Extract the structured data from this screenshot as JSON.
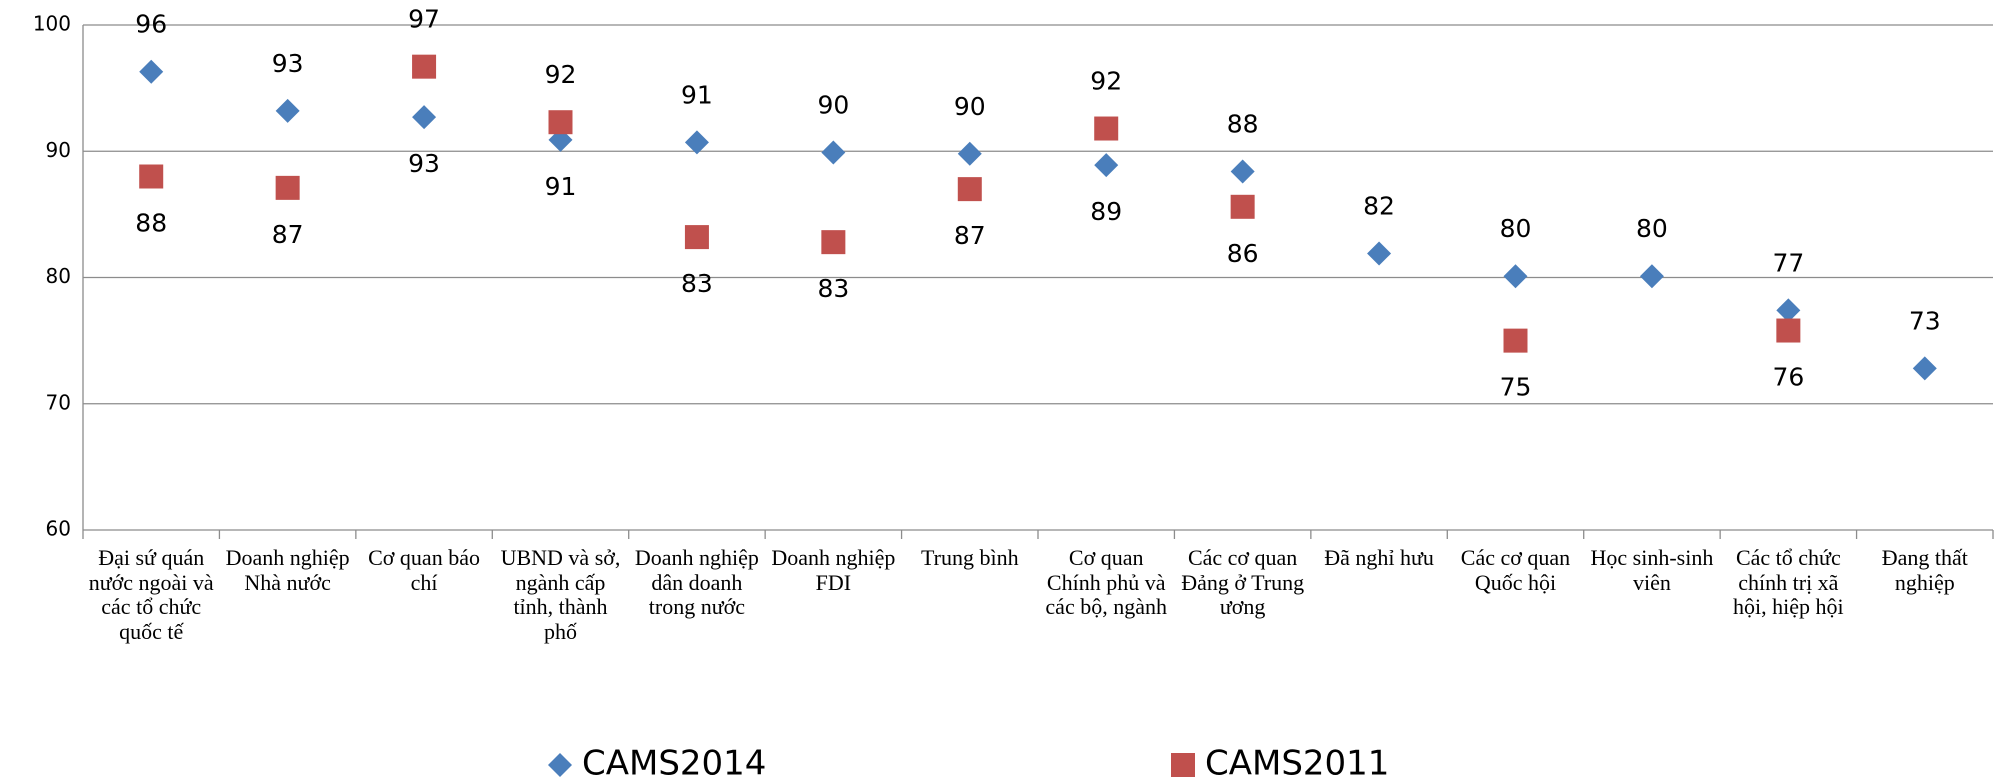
{
  "chart_data": {
    "type": "scatter",
    "categories": [
      "Đại sứ quán nước ngoài và các tổ chức quốc tế",
      "Doanh nghiệp Nhà nước",
      "Cơ quan báo chí",
      "UBND và sở, ngành cấp tỉnh, thành phố",
      "Doanh nghiệp dân doanh trong nước",
      "Doanh nghiệp FDI",
      "Trung bình",
      "Cơ quan Chính phủ và các bộ, ngành",
      "Các cơ quan Đảng ở Trung ương",
      "Đã nghỉ hưu",
      "Các cơ quan Quốc hội",
      "Học sinh-sinh viên",
      "Các tổ chức chính trị xã hội, hiệp hội",
      "Đang thất nghiệp"
    ],
    "series": [
      {
        "name": "CAMS2014",
        "color": "#4a7ebb",
        "marker": "diamond",
        "values": [
          96.3,
          93.2,
          92.7,
          90.9,
          90.7,
          89.9,
          89.8,
          88.9,
          88.4,
          81.9,
          80.1,
          80.1,
          77.4,
          72.8
        ],
        "value_labels": [
          "96",
          "93",
          "93",
          "91",
          "91",
          "90",
          "90",
          "89",
          "88",
          "82",
          "80",
          "80",
          "77",
          "73"
        ]
      },
      {
        "name": "CAMS2011",
        "color": "#c0504d",
        "marker": "square",
        "values": [
          88.0,
          87.1,
          96.7,
          92.3,
          83.2,
          82.8,
          87.0,
          91.8,
          85.6,
          null,
          75.0,
          null,
          75.8,
          null
        ],
        "value_labels": [
          "88",
          "87",
          "97",
          "92",
          "83",
          "83",
          "87",
          "92",
          "86",
          null,
          "75",
          null,
          "76",
          null
        ]
      }
    ],
    "ylim": [
      60,
      100
    ],
    "yticks": [
      60,
      70,
      80,
      90,
      100
    ],
    "grid": true
  }
}
